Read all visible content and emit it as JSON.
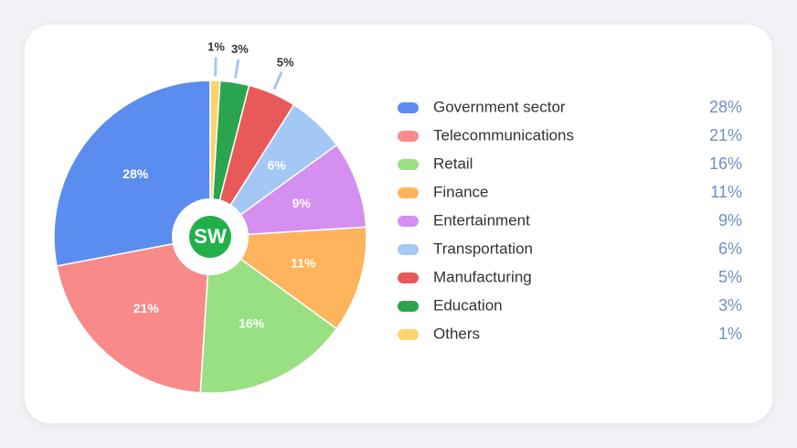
{
  "chart_data": {
    "type": "pie",
    "logo": "SW",
    "categories": [
      "Government sector",
      "Telecommunications",
      "Retail",
      "Finance",
      "Entertainment",
      "Transportation",
      "Manufacturing",
      "Education",
      "Others"
    ],
    "values": [
      28,
      21,
      16,
      11,
      9,
      6,
      5,
      3,
      1
    ],
    "value_labels": [
      "28%",
      "21%",
      "16%",
      "11%",
      "9%",
      "6%",
      "5%",
      "3%",
      "1%"
    ],
    "colors": [
      "#5b8def",
      "#f88a8a",
      "#98e082",
      "#fdb45c",
      "#d48ff0",
      "#a3c8f5",
      "#e85a5a",
      "#2aa44f",
      "#fcd36b"
    ],
    "legend": "right"
  }
}
